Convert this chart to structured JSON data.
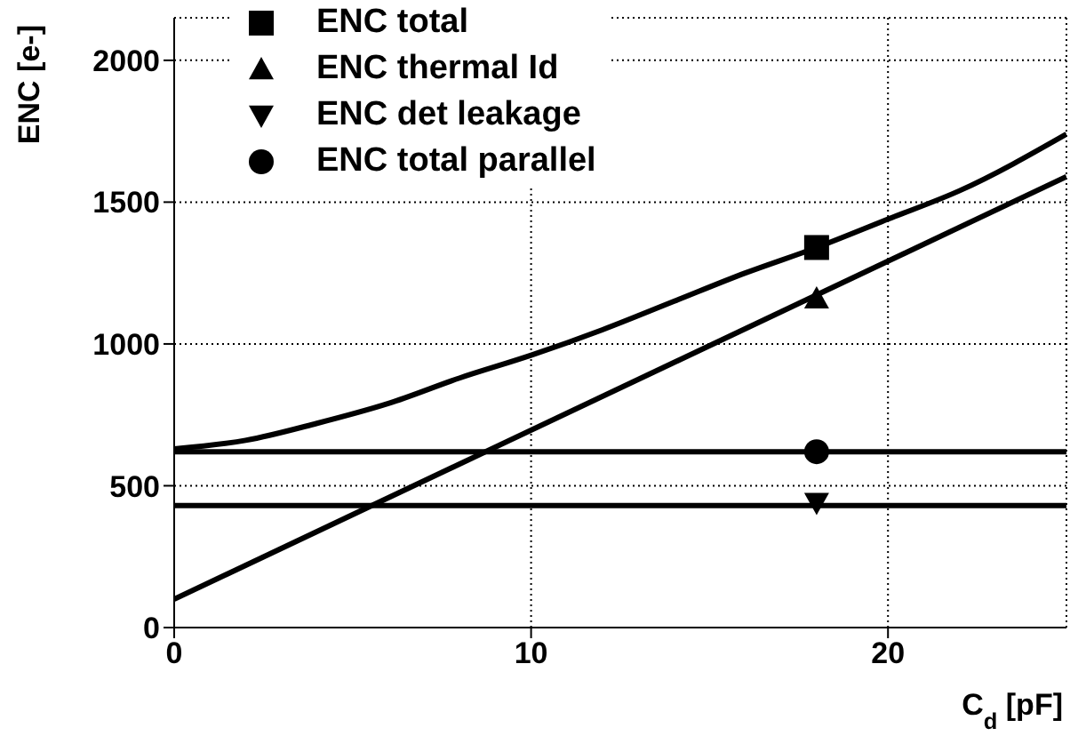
{
  "chart_data": {
    "type": "line",
    "xlabel": "C$_{d}$ [pF]",
    "ylabel": "ENC [e-]",
    "xlim": [
      0,
      25
    ],
    "xticks": [
      0,
      10,
      20
    ],
    "ylim": [
      0,
      2150
    ],
    "yticks": [
      0,
      500,
      1000,
      1500,
      2000
    ],
    "grid": true,
    "legend": "top left",
    "series": [
      {
        "color": "#000000",
        "marker": "none",
        "x": [
          0,
          2,
          4,
          6,
          8,
          10,
          12,
          14,
          16,
          18,
          20,
          22,
          25
        ],
        "values": [
          630,
          660,
          720,
          790,
          880,
          960,
          1050,
          1150,
          1250,
          1340,
          1440,
          1540,
          1740
        ]
      },
      {
        "color": "#000000",
        "marker": "none",
        "x": [
          0,
          25
        ],
        "values": [
          100,
          1590
        ]
      },
      {
        "color": "#000000",
        "marker": "none",
        "x": [
          0,
          25
        ],
        "values": [
          430,
          430
        ]
      },
      {
        "color": "#000000",
        "marker": "none",
        "x": [
          0,
          25
        ],
        "values": [
          620,
          620
        ]
      },
      {
        "type": "scatter",
        "name": "ENC total",
        "color": "#000000",
        "marker": "square",
        "x": [
          18
        ],
        "values": [
          1340
        ]
      },
      {
        "type": "scatter",
        "name": "ENC thermal Id",
        "color": "#000000",
        "marker": "triangle",
        "x": [
          18
        ],
        "values": [
          1160
        ]
      },
      {
        "type": "scatter",
        "name": "ENC det leakage",
        "color": "#000000",
        "marker": "triangle-down",
        "x": [
          18
        ],
        "values": [
          440
        ]
      },
      {
        "type": "scatter",
        "name": "ENC total parallel",
        "color": "#000000",
        "marker": "circle",
        "x": [
          18
        ],
        "values": [
          620
        ]
      }
    ]
  }
}
